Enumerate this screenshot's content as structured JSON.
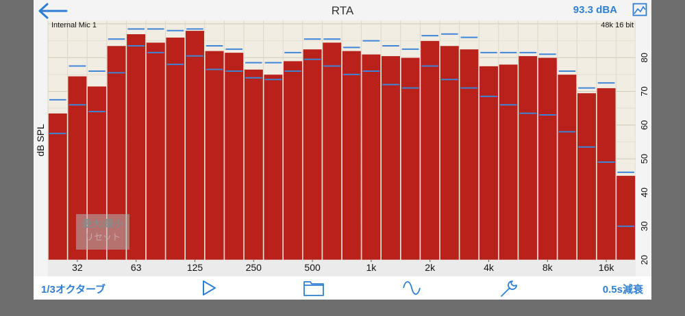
{
  "header": {
    "title": "RTA",
    "level": "93.3 dBA"
  },
  "chart_overlay": {
    "input_label": "Internal Mic 1",
    "format_label": "48k 16 bit"
  },
  "reset_button": {
    "line1": "最大/最小",
    "line2": "リセット"
  },
  "toolbar": {
    "octave_label": "1/3オクターブ",
    "decay_label": "0.5s減衰"
  },
  "colors": {
    "bar": "#b8221b",
    "marker": "#3f86d9",
    "plot_bg": "#f2ede3",
    "accent": "#2f7fd1"
  },
  "chart_data": {
    "type": "bar",
    "ylabel": "dB SPL",
    "ylim": [
      20,
      91
    ],
    "yticks": [
      20,
      30,
      40,
      50,
      60,
      70,
      80
    ],
    "x_tick_labels": [
      "32",
      "63",
      "125",
      "250",
      "500",
      "1k",
      "2k",
      "4k",
      "8k",
      "16k"
    ],
    "x_tick_bar_index": [
      1,
      4,
      7,
      10,
      13,
      16,
      19,
      22,
      25,
      28
    ],
    "bands": 30,
    "series": [
      {
        "name": "level",
        "values": [
          63.5,
          74.5,
          71.5,
          83.5,
          87.0,
          84.5,
          86.0,
          88.0,
          82.0,
          81.5,
          76.5,
          75.0,
          79.0,
          82.5,
          84.5,
          82.0,
          81.0,
          80.5,
          80.0,
          85.0,
          83.5,
          82.5,
          77.5,
          78.0,
          80.5,
          80.0,
          75.0,
          69.5,
          71.0,
          45.0
        ]
      },
      {
        "name": "max",
        "values": [
          67.5,
          77.5,
          76.0,
          85.5,
          88.5,
          88.5,
          88.0,
          88.5,
          83.5,
          82.5,
          78.5,
          78.5,
          81.5,
          85.5,
          85.5,
          83.0,
          85.0,
          83.5,
          82.5,
          86.5,
          87.0,
          86.0,
          81.5,
          81.5,
          81.5,
          81.0,
          76.0,
          71.0,
          72.5,
          46.0
        ]
      },
      {
        "name": "min",
        "values": [
          57.5,
          66.0,
          64.0,
          75.5,
          83.5,
          81.5,
          78.0,
          80.5,
          76.5,
          76.0,
          74.0,
          73.5,
          76.0,
          79.5,
          77.5,
          75.0,
          76.0,
          72.0,
          71.0,
          77.5,
          73.5,
          71.0,
          68.5,
          66.0,
          63.5,
          63.0,
          58.0,
          53.5,
          49.0,
          30.0
        ]
      }
    ]
  }
}
